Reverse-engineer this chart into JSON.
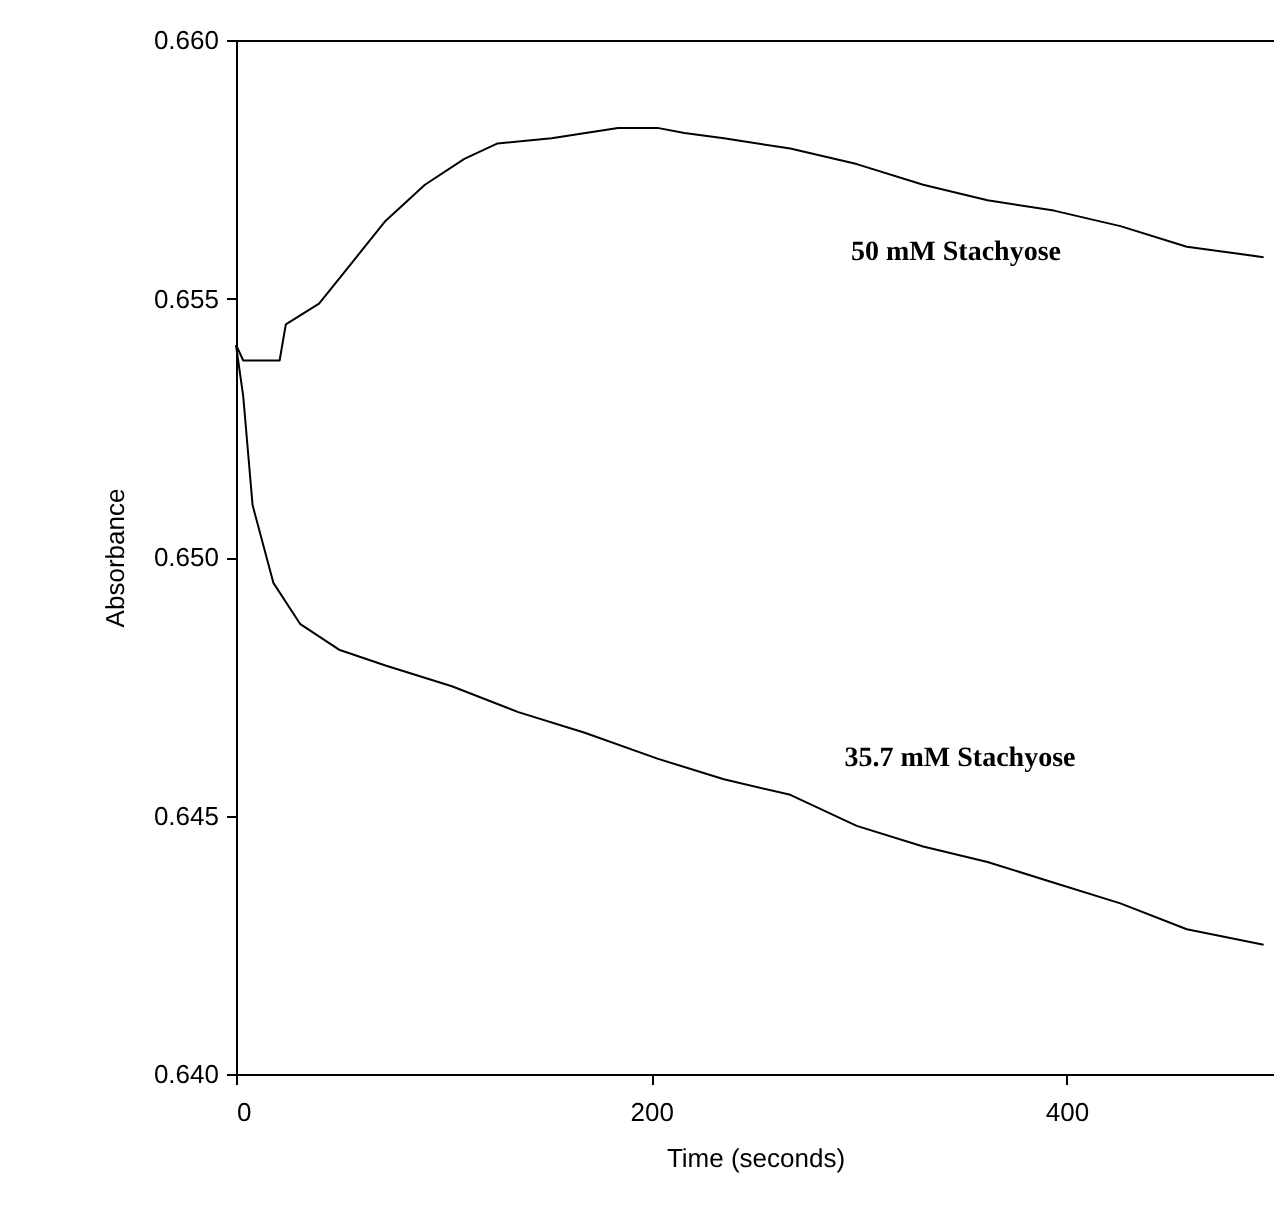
{
  "chart_data": {
    "type": "line",
    "xlabel": "Time (seconds)",
    "ylabel": "Absorbance",
    "xlim": [
      0,
      500
    ],
    "xticks": [
      0,
      200,
      400
    ],
    "ylim": [
      0.64,
      0.66
    ],
    "yticks": [
      {
        "value": 0.64,
        "label": "0.640"
      },
      {
        "value": 0.645,
        "label": "0.645"
      },
      {
        "value": 0.65,
        "label": "0.650"
      },
      {
        "value": 0.655,
        "label": "0.655"
      },
      {
        "value": 0.66,
        "label": "0.660"
      }
    ],
    "grid": false,
    "marker": "none",
    "line_style": "solid",
    "series": [
      {
        "color": "#000000",
        "x": [
          0,
          3.5,
          21,
          24,
          40,
          56,
          72,
          91,
          110,
          126,
          152,
          184,
          203,
          216,
          235,
          267,
          299,
          331,
          362,
          394,
          426,
          458,
          495
        ],
        "values": [
          0.6541,
          0.6538,
          0.6538,
          0.6545,
          0.6549,
          0.6557,
          0.6565,
          0.6572,
          0.6577,
          0.658,
          0.6581,
          0.6583,
          0.6583,
          0.6582,
          0.6581,
          0.6579,
          0.6576,
          0.6572,
          0.6569,
          0.6567,
          0.6564,
          0.656,
          0.6558
        ]
      },
      {
        "color": "#000000",
        "x": [
          0,
          3.5,
          8,
          18,
          31,
          50,
          72,
          104,
          136,
          168,
          203,
          235,
          267,
          299,
          331,
          362,
          394,
          426,
          458,
          495
        ],
        "values": [
          0.6541,
          0.6531,
          0.651,
          0.6495,
          0.6487,
          0.6482,
          0.6479,
          0.6475,
          0.647,
          0.6466,
          0.6461,
          0.6457,
          0.6454,
          0.6448,
          0.6444,
          0.6441,
          0.6437,
          0.6433,
          0.6428,
          0.6425
        ]
      }
    ],
    "annotations": [
      "50 mM Stachyose",
      "35.7 mM Stachyose"
    ]
  }
}
